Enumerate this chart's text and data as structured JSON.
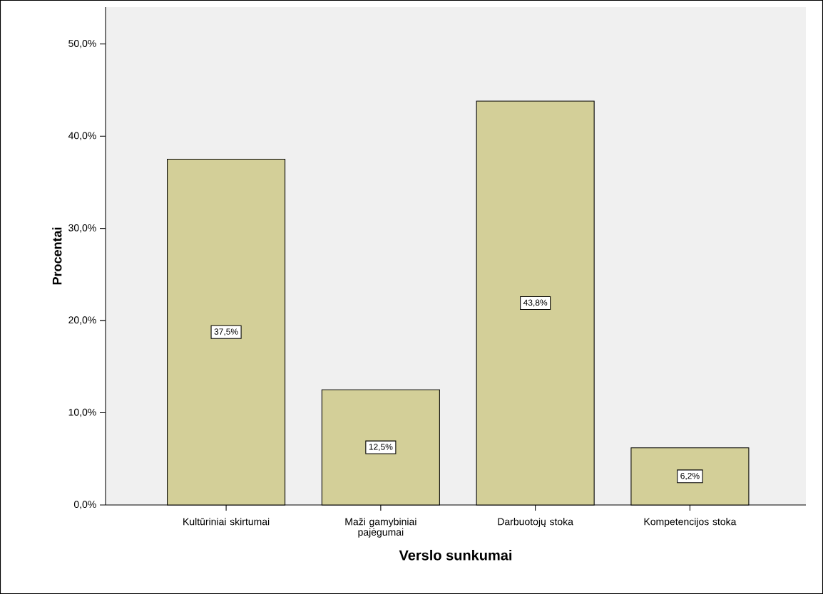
{
  "chart_data": {
    "type": "bar",
    "xlabel": "Verslo sunkumai",
    "ylabel": "Procentai",
    "categories": [
      "Kultūriniai skirtumai",
      "Maži gamybiniai pajėgumai",
      "Darbuotojų stoka",
      "Kompetencijos stoka"
    ],
    "values": [
      37.5,
      12.5,
      43.8,
      6.2
    ],
    "value_labels": [
      "37,5%",
      "12,5%",
      "43,8%",
      "6,2%"
    ],
    "color": "#d3cf98",
    "ylim": [
      0,
      54
    ],
    "yticks": [
      {
        "value": 0,
        "label": "0,0%"
      },
      {
        "value": 10,
        "label": "10,0%"
      },
      {
        "value": 20,
        "label": "20,0%"
      },
      {
        "value": 30,
        "label": "30,0%"
      },
      {
        "value": 40,
        "label": "40,0%"
      },
      {
        "value": 50,
        "label": "50,0%"
      }
    ],
    "grid": false
  }
}
